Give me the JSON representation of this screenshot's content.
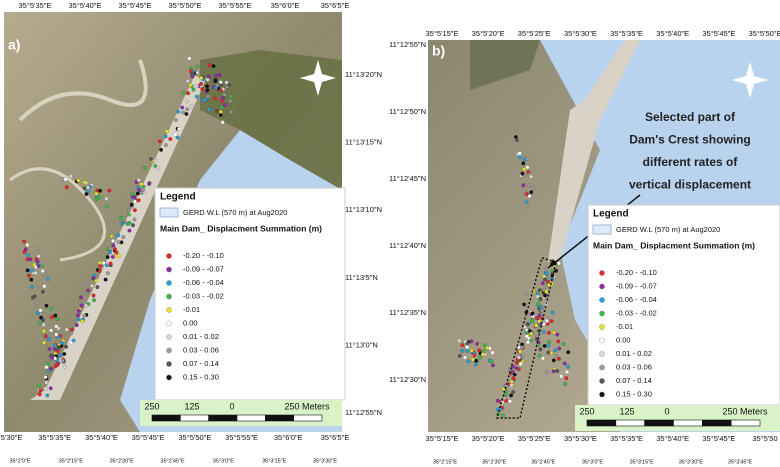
{
  "panels": [
    {
      "label": "a)",
      "top_coords": [
        "35°5'35\"E",
        "35°5'40\"E",
        "35°5'45\"E",
        "35°5'50\"E",
        "35°5'55\"E",
        "35°6'0\"E",
        "35°6'5\"E"
      ],
      "bottom_coords": [
        "5°5'30\"E",
        "35°5'35\"E",
        "35°5'40\"E",
        "35°5'45\"E",
        "35°5'50\"E",
        "35°5'55\"E",
        "35°6'0\"E",
        "35°6'5\"E"
      ],
      "side_coords": [
        "11°13'20\"N",
        "11°13'15\"N",
        "11°13'10\"N",
        "11°13'5\"N",
        "11°13'0\"N",
        "11°12'55\"N"
      ],
      "outer_coords": [
        "35°2'0\"E",
        "35°2'15\"E",
        "35°2'30\"E",
        "35°2'45\"E",
        "35°3'0\"E",
        "35°3'15\"E",
        "35°3'30\"E"
      ],
      "legend": {
        "title": "Legend",
        "water": "GERD W.L (570 m) at Aug2020",
        "subtitle": "Main Dam_ Displacment Summation (m)",
        "items": [
          {
            "label": "-0.20 - -0.10",
            "color": "#e3262a"
          },
          {
            "label": "-0.09 - -0.07",
            "color": "#8e2ca6"
          },
          {
            "label": "-0.06 - -0.04",
            "color": "#2a9fd6"
          },
          {
            "label": "-0.03 - -0.02",
            "color": "#3cb84a"
          },
          {
            "label": "-0.01",
            "color": "#e8e32a"
          },
          {
            "label": "0.00",
            "color": "#ffffff"
          },
          {
            "label": "0.01 - 0.02",
            "color": "#d9d9d9"
          },
          {
            "label": "0.03 - 0.06",
            "color": "#9a9a9a"
          },
          {
            "label": "0.07 - 0.14",
            "color": "#555555"
          },
          {
            "label": "0.15 - 0.30",
            "color": "#111111"
          }
        ]
      },
      "scale_labels": [
        "250",
        "125",
        "0",
        "250 Meters"
      ]
    },
    {
      "label": "b)",
      "top_coords": [
        "35°5'15\"E",
        "35°5'20\"E",
        "35°5'25\"E",
        "35°5'30\"E",
        "35°5'35\"E",
        "35°5'40\"E",
        "35°5'45\"E",
        "35°5'50\"E"
      ],
      "bottom_coords": [
        "35°5'15\"E",
        "35°5'20\"E",
        "35°5'25\"E",
        "35°5'30\"E",
        "35°5'35\"E",
        "35°5'40\"E",
        "35°5'45\"E",
        "35°5'50"
      ],
      "side_coords": [
        "11°12'55\"N",
        "11°12'50\"N",
        "11°12'45\"N",
        "11°12'40\"N",
        "11°12'35\"N",
        "11°12'30\"N"
      ],
      "outer_coords": [
        "35°2'15\"E",
        "35°2'30\"E",
        "35°2'45\"E",
        "35°3'0\"E",
        "35°3'15\"E",
        "35°3'30\"E",
        "35°3'45\"E"
      ],
      "legend": {
        "title": "Legend",
        "water": "GERD W.L (570 m) at Aug2020",
        "subtitle": "Main Dam_ Displacment Summation (m)",
        "items": [
          {
            "label": "-0.20 - -0.10",
            "color": "#e3262a"
          },
          {
            "label": "-0.09 - -0.07",
            "color": "#8e2ca6"
          },
          {
            "label": "-0.06 - -0.04",
            "color": "#2a9fd6"
          },
          {
            "label": "-0.03 - -0.02",
            "color": "#3cb84a"
          },
          {
            "label": "-0.01",
            "color": "#e8e32a"
          },
          {
            "label": "0.00",
            "color": "#ffffff"
          },
          {
            "label": "0.01 - 0.02",
            "color": "#d9d9d9"
          },
          {
            "label": "0.03 - 0.06",
            "color": "#9a9a9a"
          },
          {
            "label": "0.07 - 0.14",
            "color": "#555555"
          },
          {
            "label": "0.15 - 0.30",
            "color": "#111111"
          }
        ]
      },
      "scale_labels": [
        "250",
        "125",
        "0",
        "250 Meters"
      ]
    }
  ],
  "annotation": {
    "lines": [
      "Selected part of",
      "Dam's Crest showing",
      "different rates of",
      "vertical displacement"
    ]
  }
}
